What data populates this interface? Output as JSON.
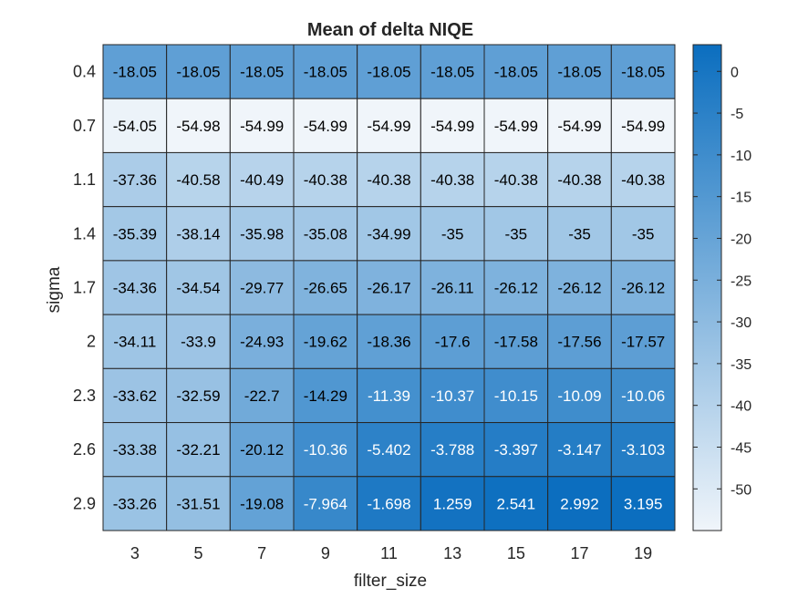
{
  "chart_data": {
    "type": "heatmap",
    "title": "Mean of delta NIQE",
    "xlabel": "filter_size",
    "ylabel": "sigma",
    "x": [
      "3",
      "5",
      "7",
      "9",
      "11",
      "13",
      "15",
      "17",
      "19"
    ],
    "y": [
      "0.4",
      "0.7",
      "1.1",
      "1.4",
      "1.7",
      "2",
      "2.3",
      "2.6",
      "2.9"
    ],
    "values": [
      [
        -18.05,
        -18.05,
        -18.05,
        -18.05,
        -18.05,
        -18.05,
        -18.05,
        -18.05,
        -18.05
      ],
      [
        -54.05,
        -54.98,
        -54.99,
        -54.99,
        -54.99,
        -54.99,
        -54.99,
        -54.99,
        -54.99
      ],
      [
        -37.36,
        -40.58,
        -40.49,
        -40.38,
        -40.38,
        -40.38,
        -40.38,
        -40.38,
        -40.38
      ],
      [
        -35.39,
        -38.14,
        -35.98,
        -35.08,
        -34.99,
        -35,
        -35,
        -35,
        -35
      ],
      [
        -34.36,
        -34.54,
        -29.77,
        -26.65,
        -26.17,
        -26.11,
        -26.12,
        -26.12,
        -26.12
      ],
      [
        -34.11,
        -33.9,
        -24.93,
        -19.62,
        -18.36,
        -17.6,
        -17.58,
        -17.56,
        -17.57
      ],
      [
        -33.62,
        -32.59,
        -22.7,
        -14.29,
        -11.39,
        -10.37,
        -10.15,
        -10.09,
        -10.06
      ],
      [
        -33.38,
        -32.21,
        -20.12,
        -10.36,
        -5.402,
        -3.788,
        -3.397,
        -3.147,
        -3.103
      ],
      [
        -33.26,
        -31.51,
        -19.08,
        -7.964,
        -1.698,
        1.259,
        2.541,
        2.992,
        3.195
      ]
    ],
    "cell_labels": [
      [
        "-18.05",
        "-18.05",
        "-18.05",
        "-18.05",
        "-18.05",
        "-18.05",
        "-18.05",
        "-18.05",
        "-18.05"
      ],
      [
        "-54.05",
        "-54.98",
        "-54.99",
        "-54.99",
        "-54.99",
        "-54.99",
        "-54.99",
        "-54.99",
        "-54.99"
      ],
      [
        "-37.36",
        "-40.58",
        "-40.49",
        "-40.38",
        "-40.38",
        "-40.38",
        "-40.38",
        "-40.38",
        "-40.38"
      ],
      [
        "-35.39",
        "-38.14",
        "-35.98",
        "-35.08",
        "-34.99",
        "-35",
        "-35",
        "-35",
        "-35"
      ],
      [
        "-34.36",
        "-34.54",
        "-29.77",
        "-26.65",
        "-26.17",
        "-26.11",
        "-26.12",
        "-26.12",
        "-26.12"
      ],
      [
        "-34.11",
        "-33.9",
        "-24.93",
        "-19.62",
        "-18.36",
        "-17.6",
        "-17.58",
        "-17.56",
        "-17.57"
      ],
      [
        "-33.62",
        "-32.59",
        "-22.7",
        "-14.29",
        "-11.39",
        "-10.37",
        "-10.15",
        "-10.09",
        "-10.06"
      ],
      [
        "-33.38",
        "-32.21",
        "-20.12",
        "-10.36",
        "-5.402",
        "-3.788",
        "-3.397",
        "-3.147",
        "-3.103"
      ],
      [
        "-33.26",
        "-31.51",
        "-19.08",
        "-7.964",
        "-1.698",
        "1.259",
        "2.541",
        "2.992",
        "3.195"
      ]
    ],
    "colorbar": {
      "range": [
        -54.99,
        3.195
      ],
      "ticks": [
        0,
        -5,
        -10,
        -15,
        -20,
        -25,
        -30,
        -35,
        -40,
        -45,
        -50
      ],
      "tick_labels": [
        "0",
        "-5",
        "-10",
        "-15",
        "-20",
        "-25",
        "-30",
        "-35",
        "-40",
        "-45",
        "-50"
      ],
      "placement": "right"
    },
    "colormap": {
      "low": "#f0f5fa",
      "high": "#0b6ebf"
    },
    "label_colors": {
      "dark": "#000000",
      "light": "#ffffff"
    }
  }
}
